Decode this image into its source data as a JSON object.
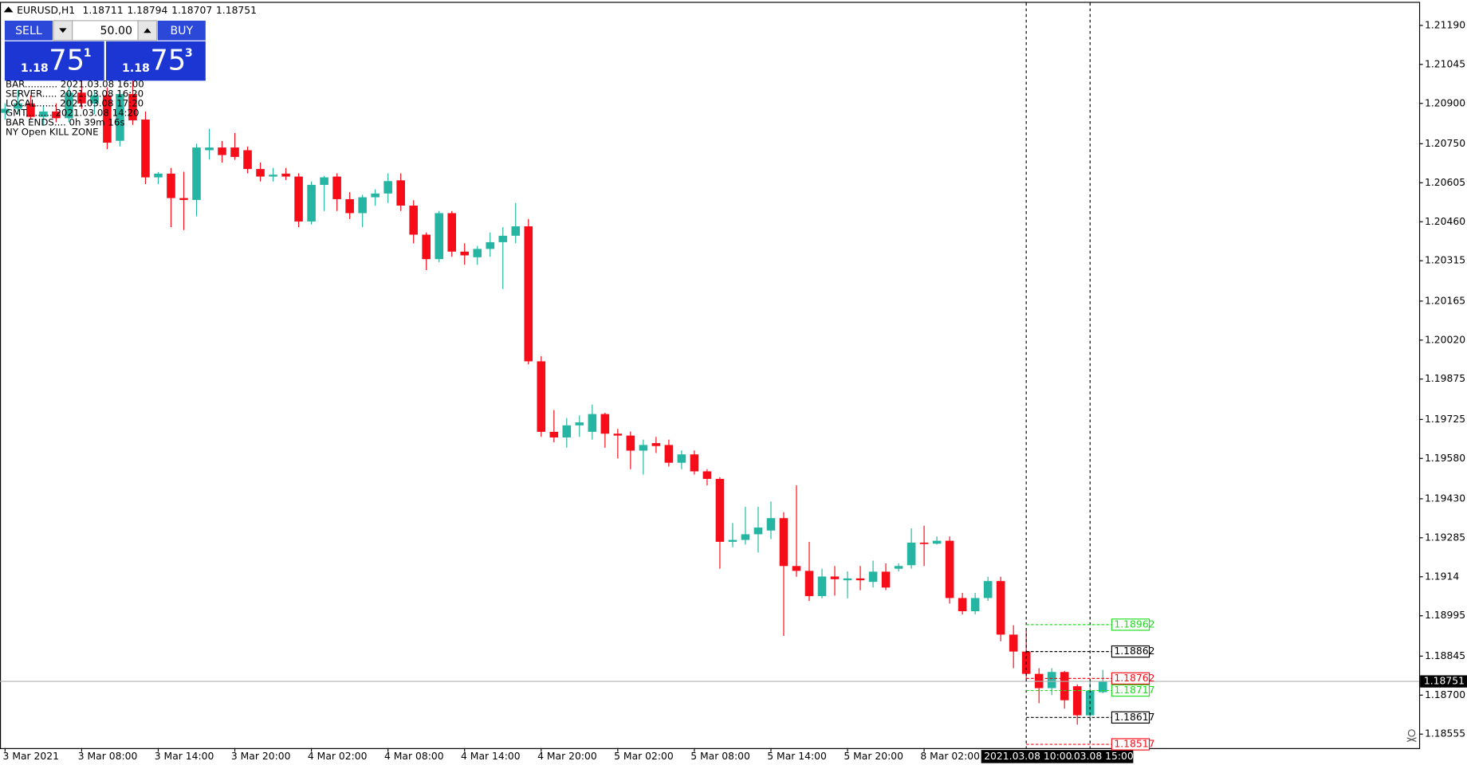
{
  "header": {
    "symbol": "EURUSD,H1"
  },
  "info_lines": [
    "BAR........... 2021.03.08 16:00",
    "SERVER..... 2021.03.08 16:20",
    "LOCAL....... 2021.03.08 17:20",
    "GMT......... 2021.03.08 14:20",
    "BAR ENDS.... 0h 39m 16s",
    "NY Open KILL ZONE"
  ],
  "panel": {
    "sell": "SELL",
    "buy": "BUY",
    "volume": "50.00",
    "bid": {
      "big": "1.18",
      "pips": "75",
      "point": "1"
    },
    "ask": {
      "big": "1.18",
      "pips": "75",
      "point": "3"
    }
  },
  "chart_data": {
    "type": "candlestick",
    "title": "EURUSD,H1",
    "categories": [
      "3 Mar 2021",
      null,
      null,
      null,
      null,
      null,
      "3 Mar 08:00",
      null,
      null,
      null,
      null,
      null,
      "3 Mar 14:00",
      null,
      null,
      null,
      null,
      null,
      "3 Mar 20:00",
      null,
      null,
      null,
      null,
      null,
      "4 Mar 02:00",
      null,
      null,
      null,
      null,
      null,
      "4 Mar 08:00",
      null,
      null,
      null,
      null,
      null,
      "4 Mar 14:00",
      null,
      null,
      null,
      null,
      null,
      "4 Mar 20:00",
      null,
      null,
      null,
      null,
      null,
      "5 Mar 02:00",
      null,
      null,
      null,
      null,
      null,
      "5 Mar 08:00",
      null,
      null,
      null,
      null,
      null,
      "5 Mar 14:00",
      null,
      null,
      null,
      null,
      null,
      "5 Mar 20:00",
      null,
      null,
      null,
      null,
      null,
      "8 Mar 02:00",
      null,
      null,
      null,
      null,
      null,
      null,
      null,
      null,
      null,
      null,
      null,
      null,
      null,
      null
    ],
    "open": [
      1.20865,
      1.2088,
      1.209,
      1.2085,
      1.2087,
      1.20845,
      1.2094,
      1.209,
      1.2093,
      1.20761,
      1.20935,
      1.2084,
      1.20625,
      1.20639,
      1.20548,
      1.20541,
      1.20726,
      1.20736,
      1.20736,
      1.20726,
      1.20656,
      1.20628,
      1.20639,
      1.20628,
      1.20461,
      1.20597,
      1.20628,
      1.20544,
      1.20492,
      1.20551,
      1.20565,
      1.20614,
      1.2052,
      1.20412,
      1.20321,
      1.20492,
      1.20349,
      1.20328,
      1.20359,
      1.20384,
      1.20408,
      1.20443,
      1.19941,
      1.19679,
      1.19658,
      1.19703,
      1.19679,
      1.19745,
      1.19672,
      1.19665,
      1.19609,
      1.19637,
      1.1963,
      1.19564,
      1.19595,
      1.19532,
      1.19504,
      1.1927,
      1.19277,
      1.19298,
      1.19312,
      1.19358,
      1.1918,
      1.19162,
      1.19068,
      1.19141,
      1.19127,
      1.19134,
      1.19121,
      1.19159,
      1.1917,
      1.19183,
      1.19267,
      1.19263,
      1.19274,
      1.19061,
      1.19012,
      1.19061,
      1.19124,
      1.18925,
      1.18862,
      1.18779,
      1.18726,
      1.18786,
      1.18733,
      1.18625,
      1.18711
    ],
    "high": [
      1.209,
      1.2095,
      1.2093,
      1.2089,
      1.209,
      1.2096,
      1.2099,
      1.2095,
      1.2096,
      1.2095,
      1.21,
      1.2087,
      1.20645,
      1.2066,
      1.20646,
      1.2075,
      1.20806,
      1.2076,
      1.2079,
      1.2074,
      1.2068,
      1.2066,
      1.2066,
      1.2064,
      1.2061,
      1.2063,
      1.2064,
      1.2057,
      1.2056,
      1.2058,
      1.2064,
      1.2064,
      1.2054,
      1.2042,
      1.205,
      1.205,
      1.2038,
      1.2037,
      1.2042,
      1.2044,
      1.2053,
      1.2047,
      1.1996,
      1.1976,
      1.1973,
      1.1974,
      1.1978,
      1.1975,
      1.1969,
      1.1968,
      1.1965,
      1.1966,
      1.1965,
      1.1961,
      1.1961,
      1.1954,
      1.1951,
      1.1934,
      1.194,
      1.194,
      1.1942,
      1.1938,
      1.1948,
      1.1927,
      1.1917,
      1.1918,
      1.1916,
      1.1918,
      1.192,
      1.1919,
      1.1919,
      1.1932,
      1.1933,
      1.1929,
      1.1929,
      1.1908,
      1.1908,
      1.1914,
      1.1914,
      1.1896,
      1.1894,
      1.188,
      1.188,
      1.1879,
      1.1874,
      1.1875,
      1.18794
    ],
    "low": [
      1.2084,
      1.2086,
      1.2084,
      1.2082,
      1.2083,
      1.2083,
      1.2088,
      1.2086,
      1.2073,
      1.2074,
      1.2082,
      1.206,
      1.206,
      1.2044,
      1.20429,
      1.2048,
      1.20691,
      1.2068,
      1.2069,
      1.2064,
      1.2061,
      1.2061,
      1.20615,
      1.2044,
      1.2045,
      1.205,
      1.205,
      1.2047,
      1.2044,
      1.2052,
      1.2053,
      1.205,
      1.2038,
      1.2028,
      1.2031,
      1.2033,
      1.203,
      1.203,
      1.2033,
      1.2021,
      1.2038,
      1.1993,
      1.1966,
      1.1964,
      1.1962,
      1.1966,
      1.1965,
      1.1962,
      1.1958,
      1.1954,
      1.1952,
      1.196,
      1.1955,
      1.1954,
      1.1952,
      1.1948,
      1.1917,
      1.1925,
      1.1926,
      1.1923,
      1.1928,
      1.1892,
      1.1914,
      1.1905,
      1.1906,
      1.1907,
      1.1906,
      1.1909,
      1.191,
      1.1909,
      1.1916,
      1.1917,
      1.1918,
      1.1926,
      1.1904,
      1.19,
      1.19,
      1.1905,
      1.189,
      1.188,
      1.1876,
      1.1867,
      1.187,
      1.1865,
      1.1859,
      1.1861,
      1.18707
    ],
    "close": [
      1.2088,
      1.209,
      1.2085,
      1.2087,
      1.20845,
      1.2094,
      1.209,
      1.2093,
      1.20754,
      1.20935,
      1.20837,
      1.20625,
      1.20639,
      1.20548,
      1.20541,
      1.20736,
      1.20736,
      1.20708,
      1.20701,
      1.20656,
      1.20628,
      1.20635,
      1.20628,
      1.20461,
      1.20597,
      1.20625,
      1.20544,
      1.20492,
      1.20551,
      1.20565,
      1.20611,
      1.2052,
      1.20412,
      1.20321,
      1.20492,
      1.20349,
      1.20335,
      1.20359,
      1.20384,
      1.20408,
      1.20443,
      1.19941,
      1.19679,
      1.19658,
      1.19703,
      1.19714,
      1.19745,
      1.19672,
      1.19665,
      1.19609,
      1.1963,
      1.19626,
      1.19564,
      1.19595,
      1.19532,
      1.19504,
      1.1927,
      1.19277,
      1.19298,
      1.19323,
      1.19358,
      1.1918,
      1.19162,
      1.19068,
      1.19141,
      1.19131,
      1.19134,
      1.19127,
      1.19159,
      1.191,
      1.1918,
      1.19267,
      1.19263,
      1.19274,
      1.19061,
      1.19012,
      1.19061,
      1.19124,
      1.18925,
      1.18862,
      1.18779,
      1.18726,
      1.18786,
      1.18681,
      1.18625,
      1.18716,
      1.18751
    ],
    "up_color": "#26b5a3",
    "down_color": "#f70d1a",
    "ylim": [
      1.18503,
      1.21274
    ],
    "yticks": [
      {
        "value": 1.2119,
        "label": "1.21190"
      },
      1.21045,
      {
        "value": 1.209,
        "label": "1.20900"
      },
      {
        "value": 1.2075,
        "label": "1.20750"
      },
      1.20605,
      {
        "value": 1.2046,
        "label": "1.20460"
      },
      1.20315,
      1.20165,
      {
        "value": 1.2002,
        "label": "1.20020"
      },
      1.19875,
      1.19725,
      {
        "value": 1.1958,
        "label": "1.19580"
      },
      {
        "value": 1.1943,
        "label": "1.19430"
      },
      1.19285,
      1.1914,
      1.18995,
      1.18845,
      {
        "value": 1.187,
        "label": "1.18700"
      },
      1.18555
    ],
    "levels": [
      {
        "value": 1.18962,
        "color": "#22dd22"
      },
      {
        "value": 1.18862,
        "color": "#000000"
      },
      {
        "value": 1.18762,
        "color": "#f70d1a"
      },
      {
        "value": 1.18717,
        "color": "#22dd22"
      },
      {
        "value": 1.18617,
        "color": "#000000"
      },
      {
        "value": 1.18517,
        "color": "#f70d1a"
      }
    ],
    "marker_labels": [
      "2021.03.08 10:00",
      "..03.08 15:00"
    ],
    "grid": false
  }
}
